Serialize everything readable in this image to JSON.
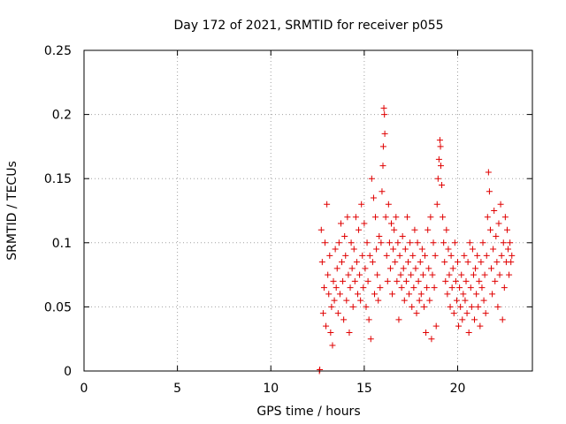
{
  "chart_data": {
    "type": "scatter",
    "title": "Day 172 of 2021, SRMTID for receiver p055",
    "xlabel": "GPS time / hours",
    "ylabel": "SRMTID / TECUs",
    "xlim": [
      0,
      24
    ],
    "ylim": [
      0,
      0.25
    ],
    "xticks": [
      0,
      5,
      10,
      15,
      20
    ],
    "xtick_labels": [
      "0",
      "5",
      "10",
      "15",
      "20"
    ],
    "yticks": [
      0,
      0.05,
      0.1,
      0.15,
      0.2,
      0.25
    ],
    "ytick_labels": [
      "0",
      "0.05",
      "0.1",
      "0.15",
      "0.2",
      "0.25"
    ],
    "grid": true,
    "marker": "+",
    "color": "#e00000",
    "series": [
      {
        "name": "SRMTID",
        "points": [
          [
            12.6,
            0.0
          ],
          [
            12.62,
            0.001
          ],
          [
            12.7,
            0.11
          ],
          [
            12.75,
            0.085
          ],
          [
            12.8,
            0.045
          ],
          [
            12.85,
            0.065
          ],
          [
            12.9,
            0.1
          ],
          [
            12.95,
            0.035
          ],
          [
            13.0,
            0.13
          ],
          [
            13.05,
            0.075
          ],
          [
            13.1,
            0.06
          ],
          [
            13.15,
            0.09
          ],
          [
            13.2,
            0.03
          ],
          [
            13.25,
            0.05
          ],
          [
            13.3,
            0.02
          ],
          [
            13.35,
            0.07
          ],
          [
            13.4,
            0.055
          ],
          [
            13.45,
            0.095
          ],
          [
            13.5,
            0.065
          ],
          [
            13.55,
            0.08
          ],
          [
            13.6,
            0.045
          ],
          [
            13.65,
            0.1
          ],
          [
            13.7,
            0.06
          ],
          [
            13.75,
            0.115
          ],
          [
            13.8,
            0.085
          ],
          [
            13.85,
            0.07
          ],
          [
            13.9,
            0.04
          ],
          [
            13.95,
            0.105
          ],
          [
            14.0,
            0.09
          ],
          [
            14.05,
            0.055
          ],
          [
            14.1,
            0.12
          ],
          [
            14.15,
            0.075
          ],
          [
            14.2,
            0.03
          ],
          [
            14.25,
            0.065
          ],
          [
            14.3,
            0.1
          ],
          [
            14.35,
            0.08
          ],
          [
            14.4,
            0.05
          ],
          [
            14.45,
            0.095
          ],
          [
            14.5,
            0.07
          ],
          [
            14.55,
            0.12
          ],
          [
            14.6,
            0.085
          ],
          [
            14.65,
            0.06
          ],
          [
            14.7,
            0.11
          ],
          [
            14.75,
            0.075
          ],
          [
            14.8,
            0.055
          ],
          [
            14.85,
            0.13
          ],
          [
            14.9,
            0.09
          ],
          [
            14.95,
            0.065
          ],
          [
            15.0,
            0.115
          ],
          [
            15.05,
            0.08
          ],
          [
            15.1,
            0.05
          ],
          [
            15.15,
            0.1
          ],
          [
            15.2,
            0.07
          ],
          [
            15.25,
            0.04
          ],
          [
            15.3,
            0.09
          ],
          [
            15.35,
            0.025
          ],
          [
            15.4,
            0.15
          ],
          [
            15.45,
            0.085
          ],
          [
            15.5,
            0.135
          ],
          [
            15.55,
            0.06
          ],
          [
            15.6,
            0.12
          ],
          [
            15.65,
            0.095
          ],
          [
            15.7,
            0.075
          ],
          [
            15.75,
            0.055
          ],
          [
            15.8,
            0.105
          ],
          [
            15.85,
            0.065
          ],
          [
            15.9,
            0.1
          ],
          [
            15.95,
            0.14
          ],
          [
            16.0,
            0.16
          ],
          [
            16.02,
            0.175
          ],
          [
            16.05,
            0.205
          ],
          [
            16.08,
            0.2
          ],
          [
            16.1,
            0.185
          ],
          [
            16.15,
            0.12
          ],
          [
            16.2,
            0.09
          ],
          [
            16.25,
            0.07
          ],
          [
            16.3,
            0.13
          ],
          [
            16.35,
            0.1
          ],
          [
            16.4,
            0.08
          ],
          [
            16.45,
            0.115
          ],
          [
            16.5,
            0.06
          ],
          [
            16.55,
            0.095
          ],
          [
            16.6,
            0.11
          ],
          [
            16.65,
            0.085
          ],
          [
            16.7,
            0.12
          ],
          [
            16.75,
            0.07
          ],
          [
            16.8,
            0.1
          ],
          [
            16.85,
            0.04
          ],
          [
            16.9,
            0.09
          ],
          [
            16.95,
            0.075
          ],
          [
            17.0,
            0.065
          ],
          [
            17.05,
            0.105
          ],
          [
            17.1,
            0.08
          ],
          [
            17.15,
            0.055
          ],
          [
            17.2,
            0.095
          ],
          [
            17.25,
            0.07
          ],
          [
            17.3,
            0.12
          ],
          [
            17.35,
            0.085
          ],
          [
            17.4,
            0.06
          ],
          [
            17.45,
            0.1
          ],
          [
            17.5,
            0.075
          ],
          [
            17.55,
            0.05
          ],
          [
            17.6,
            0.09
          ],
          [
            17.65,
            0.065
          ],
          [
            17.7,
            0.11
          ],
          [
            17.75,
            0.08
          ],
          [
            17.8,
            0.045
          ],
          [
            17.85,
            0.1
          ],
          [
            17.9,
            0.07
          ],
          [
            17.95,
            0.055
          ],
          [
            18.0,
            0.085
          ],
          [
            18.05,
            0.06
          ],
          [
            18.1,
            0.095
          ],
          [
            18.15,
            0.075
          ],
          [
            18.2,
            0.05
          ],
          [
            18.25,
            0.09
          ],
          [
            18.3,
            0.03
          ],
          [
            18.35,
            0.065
          ],
          [
            18.4,
            0.11
          ],
          [
            18.45,
            0.08
          ],
          [
            18.5,
            0.055
          ],
          [
            18.55,
            0.12
          ],
          [
            18.6,
            0.025
          ],
          [
            18.65,
            0.075
          ],
          [
            18.7,
            0.1
          ],
          [
            18.75,
            0.065
          ],
          [
            18.8,
            0.09
          ],
          [
            18.85,
            0.035
          ],
          [
            18.9,
            0.13
          ],
          [
            18.95,
            0.15
          ],
          [
            19.0,
            0.165
          ],
          [
            19.05,
            0.18
          ],
          [
            19.08,
            0.175
          ],
          [
            19.1,
            0.16
          ],
          [
            19.15,
            0.145
          ],
          [
            19.2,
            0.12
          ],
          [
            19.25,
            0.1
          ],
          [
            19.3,
            0.085
          ],
          [
            19.35,
            0.07
          ],
          [
            19.4,
            0.11
          ],
          [
            19.45,
            0.06
          ],
          [
            19.5,
            0.095
          ],
          [
            19.55,
            0.075
          ],
          [
            19.6,
            0.05
          ],
          [
            19.65,
            0.09
          ],
          [
            19.7,
            0.065
          ],
          [
            19.75,
            0.08
          ],
          [
            19.8,
            0.045
          ],
          [
            19.85,
            0.1
          ],
          [
            19.9,
            0.07
          ],
          [
            19.95,
            0.055
          ],
          [
            20.0,
            0.085
          ],
          [
            20.05,
            0.035
          ],
          [
            20.1,
            0.065
          ],
          [
            20.15,
            0.05
          ],
          [
            20.2,
            0.075
          ],
          [
            20.25,
            0.04
          ],
          [
            20.3,
            0.06
          ],
          [
            20.35,
            0.09
          ],
          [
            20.4,
            0.055
          ],
          [
            20.45,
            0.07
          ],
          [
            20.5,
            0.045
          ],
          [
            20.55,
            0.085
          ],
          [
            20.6,
            0.03
          ],
          [
            20.65,
            0.1
          ],
          [
            20.7,
            0.065
          ],
          [
            20.75,
            0.05
          ],
          [
            20.8,
            0.095
          ],
          [
            20.85,
            0.075
          ],
          [
            20.9,
            0.04
          ],
          [
            20.95,
            0.08
          ],
          [
            21.0,
            0.06
          ],
          [
            21.05,
            0.09
          ],
          [
            21.1,
            0.05
          ],
          [
            21.15,
            0.07
          ],
          [
            21.2,
            0.035
          ],
          [
            21.25,
            0.085
          ],
          [
            21.3,
            0.065
          ],
          [
            21.35,
            0.1
          ],
          [
            21.4,
            0.055
          ],
          [
            21.45,
            0.075
          ],
          [
            21.5,
            0.045
          ],
          [
            21.55,
            0.09
          ],
          [
            21.6,
            0.12
          ],
          [
            21.65,
            0.155
          ],
          [
            21.7,
            0.14
          ],
          [
            21.75,
            0.11
          ],
          [
            21.8,
            0.08
          ],
          [
            21.85,
            0.06
          ],
          [
            21.9,
            0.095
          ],
          [
            21.95,
            0.125
          ],
          [
            22.0,
            0.07
          ],
          [
            22.05,
            0.105
          ],
          [
            22.1,
            0.085
          ],
          [
            22.15,
            0.05
          ],
          [
            22.2,
            0.115
          ],
          [
            22.25,
            0.075
          ],
          [
            22.3,
            0.13
          ],
          [
            22.35,
            0.09
          ],
          [
            22.4,
            0.04
          ],
          [
            22.45,
            0.1
          ],
          [
            22.5,
            0.065
          ],
          [
            22.55,
            0.12
          ],
          [
            22.6,
            0.085
          ],
          [
            22.65,
            0.11
          ],
          [
            22.7,
            0.095
          ],
          [
            22.75,
            0.075
          ],
          [
            22.8,
            0.1
          ],
          [
            22.85,
            0.085
          ],
          [
            22.9,
            0.09
          ]
        ]
      }
    ]
  }
}
